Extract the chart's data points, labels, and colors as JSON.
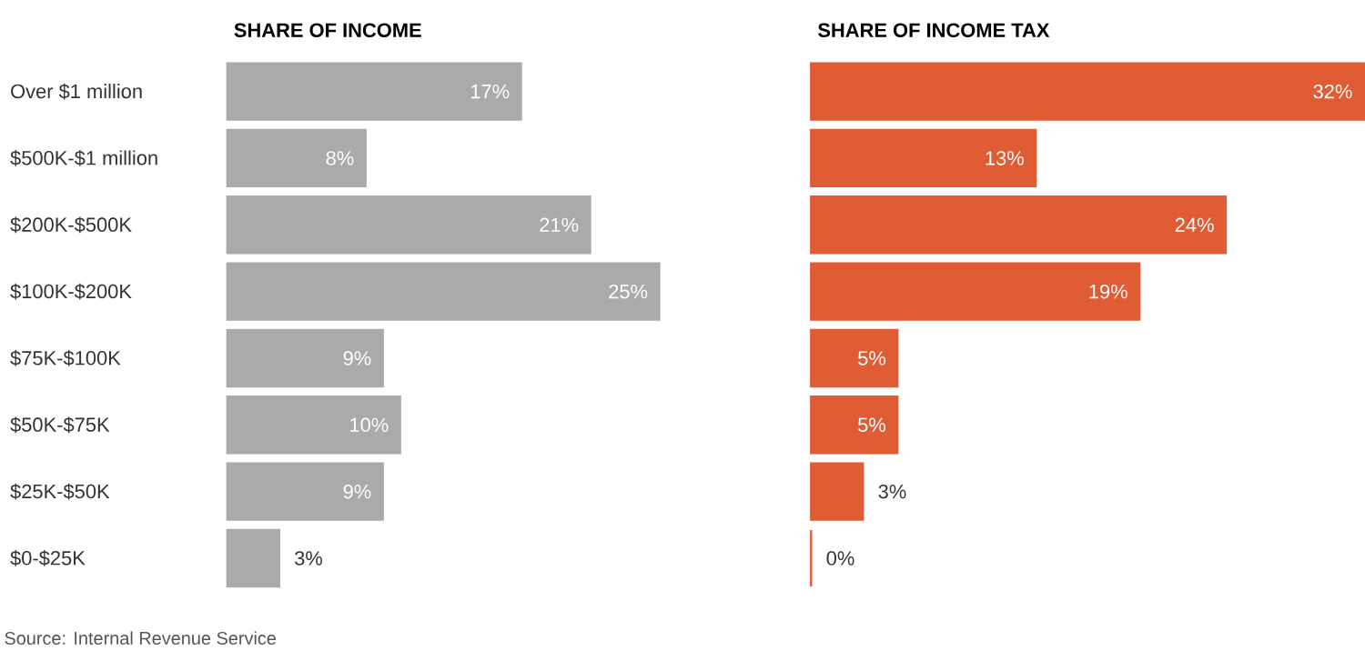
{
  "chart_data": [
    {
      "type": "bar",
      "orientation": "horizontal",
      "title": "SHARE OF INCOME",
      "categories": [
        "Over $1 million",
        "$500K-$1 million",
        "$200K-$500K",
        "$100K-$200K",
        "$75K-$100K",
        "$50K-$75K",
        "$25K-$50K",
        "$0-$25K"
      ],
      "values": [
        17,
        8,
        21,
        25,
        9,
        10,
        9,
        3
      ],
      "value_labels": [
        "17%",
        "8%",
        "21%",
        "25%",
        "9%",
        "10%",
        "9%",
        "3%"
      ],
      "color": "#aaaaaa",
      "tick_labels": "y",
      "annotations": [
        "Source: Internal Revenue Service"
      ]
    },
    {
      "type": "bar",
      "orientation": "horizontal",
      "title": "SHARE OF INCOME TAX",
      "values": [
        32,
        13,
        24,
        19,
        5,
        5,
        3,
        0
      ],
      "value_labels": [
        "32%",
        "13%",
        "24%",
        "19%",
        "5%",
        "5%",
        "3%",
        "0%"
      ],
      "color": "#e05c35",
      "tick_labels": false
    }
  ]
}
